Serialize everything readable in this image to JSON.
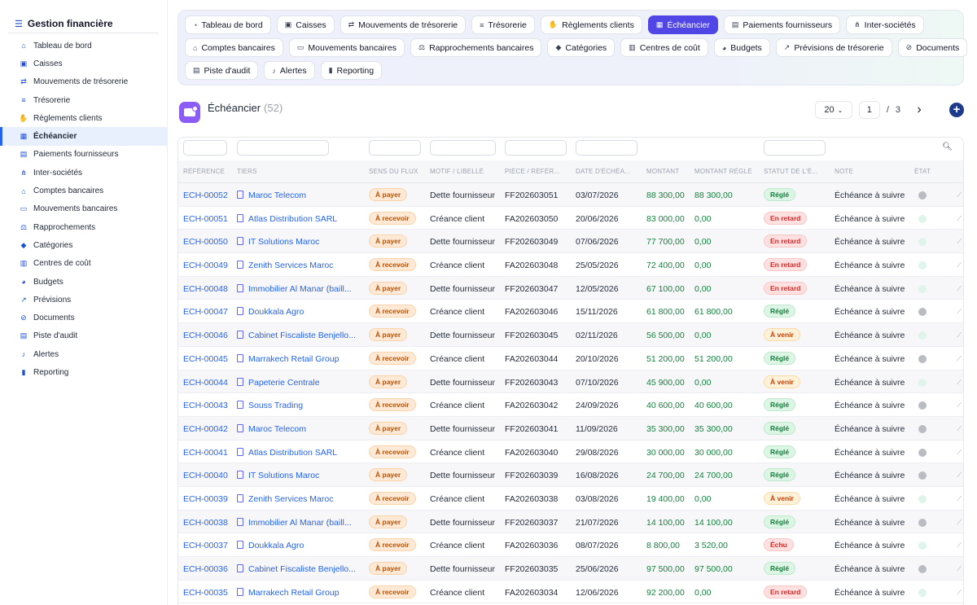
{
  "app": {
    "title": "Gestion financière"
  },
  "sidebar": {
    "items": [
      {
        "label": "Tableau de bord",
        "icon": "dashboard-icon",
        "glyph": "⌂"
      },
      {
        "label": "Caisses",
        "icon": "cash-register-icon",
        "glyph": "▣"
      },
      {
        "label": "Mouvements de trésorerie",
        "icon": "arrows-exchange-icon",
        "glyph": "⇄"
      },
      {
        "label": "Trésorerie",
        "icon": "list-icon",
        "glyph": "≡"
      },
      {
        "label": "Règlements clients",
        "icon": "hand-money-icon",
        "glyph": "✋"
      },
      {
        "label": "Échéancier",
        "icon": "calendar-icon",
        "glyph": "▦"
      },
      {
        "label": "Paiements fournisseurs",
        "icon": "document-icon",
        "glyph": "▤"
      },
      {
        "label": "Inter-sociétés",
        "icon": "sitemap-icon",
        "glyph": "⋔"
      },
      {
        "label": "Comptes bancaires",
        "icon": "bank-icon",
        "glyph": "⌂"
      },
      {
        "label": "Mouvements bancaires",
        "icon": "money-bill-icon",
        "glyph": "▭"
      },
      {
        "label": "Rapprochements",
        "icon": "scale-icon",
        "glyph": "⚖"
      },
      {
        "label": "Catégories",
        "icon": "tags-icon",
        "glyph": "◆"
      },
      {
        "label": "Centres de coût",
        "icon": "receipt-icon",
        "glyph": "▥"
      },
      {
        "label": "Budgets",
        "icon": "pie-chart-icon",
        "glyph": "◕"
      },
      {
        "label": "Prévisions",
        "icon": "line-chart-icon",
        "glyph": "↗"
      },
      {
        "label": "Documents",
        "icon": "paperclip-icon",
        "glyph": "⊘"
      },
      {
        "label": "Piste d'audit",
        "icon": "clipboard-icon",
        "glyph": "▤"
      },
      {
        "label": "Alertes",
        "icon": "bell-icon",
        "glyph": "♪"
      },
      {
        "label": "Reporting",
        "icon": "bar-chart-icon",
        "glyph": "▮"
      }
    ],
    "active_index": 5
  },
  "topnav": {
    "rows": [
      [
        {
          "label": "Tableau de bord",
          "icon": "dashboard-icon",
          "glyph": "◔"
        },
        {
          "label": "Caisses",
          "icon": "cash-register-icon",
          "glyph": "▣"
        },
        {
          "label": "Mouvements de trésorerie",
          "icon": "arrows-exchange-icon",
          "glyph": "⇄"
        },
        {
          "label": "Trésorerie",
          "icon": "list-icon",
          "glyph": "≡"
        },
        {
          "label": "Règlements clients",
          "icon": "hand-money-icon",
          "glyph": "✋"
        },
        {
          "label": "Échéancier",
          "icon": "calendar-icon",
          "glyph": "▦",
          "active": true
        },
        {
          "label": "Paiements fournisseurs",
          "icon": "document-icon",
          "glyph": "▤"
        },
        {
          "label": "Inter-sociétés",
          "icon": "sitemap-icon",
          "glyph": "⋔"
        }
      ],
      [
        {
          "label": "Comptes bancaires",
          "icon": "bank-icon",
          "glyph": "⌂"
        },
        {
          "label": "Mouvements bancaires",
          "icon": "money-bill-icon",
          "glyph": "▭"
        },
        {
          "label": "Rapprochements bancaires",
          "icon": "scale-icon",
          "glyph": "⚖"
        },
        {
          "label": "Catégories",
          "icon": "tags-icon",
          "glyph": "◆"
        },
        {
          "label": "Centres de coût",
          "icon": "receipt-icon",
          "glyph": "▥"
        },
        {
          "label": "Budgets",
          "icon": "pie-chart-icon",
          "glyph": "◕"
        },
        {
          "label": "Prévisions de trésorerie",
          "icon": "line-chart-icon",
          "glyph": "↗"
        },
        {
          "label": "Documents",
          "icon": "paperclip-icon",
          "glyph": "⊘"
        }
      ],
      [
        {
          "label": "Piste d'audit",
          "icon": "clipboard-icon",
          "glyph": "▤"
        },
        {
          "label": "Alertes",
          "icon": "bell-icon",
          "glyph": "♪"
        },
        {
          "label": "Reporting",
          "icon": "bar-chart-icon",
          "glyph": "▮"
        }
      ]
    ]
  },
  "page": {
    "title": "Échéancier",
    "count": "(52)",
    "page_size": "20",
    "page_current": "1",
    "page_sep": "/",
    "page_total": "3",
    "next_glyph": "›",
    "add_glyph": "+"
  },
  "table": {
    "columns": [
      "RÉFÉRENCE",
      "TIERS",
      "SENS DU FLUX",
      "MOTIF / LIBELLÉ",
      "PIÈCE / RÉFÉR...",
      "DATE D'ÉCHÉA...",
      "MONTANT",
      "MONTANT RÉGLÉ",
      "STATUT DE L'É...",
      "NOTE",
      "ÉTAT"
    ],
    "rows": [
      {
        "ref": "ECH-00052",
        "tiers": "Maroc Telecom",
        "sens": "À payer",
        "motif": "Dette fournisseur",
        "piece": "FF202603051",
        "date": "03/07/2026",
        "montant": "88 300,00",
        "regle": "88 300,00",
        "statut": "Réglé",
        "note": "Échéance à suivre",
        "etat": "grey"
      },
      {
        "ref": "ECH-00051",
        "tiers": "Atlas Distribution SARL",
        "sens": "À recevoir",
        "motif": "Créance client",
        "piece": "FA202603050",
        "date": "20/06/2026",
        "montant": "83 000,00",
        "regle": "0,00",
        "statut": "En retard",
        "note": "Échéance à suivre",
        "etat": "mint"
      },
      {
        "ref": "ECH-00050",
        "tiers": "IT Solutions Maroc",
        "sens": "À payer",
        "motif": "Dette fournisseur",
        "piece": "FF202603049",
        "date": "07/06/2026",
        "montant": "77 700,00",
        "regle": "0,00",
        "statut": "En retard",
        "note": "Échéance à suivre",
        "etat": "mint"
      },
      {
        "ref": "ECH-00049",
        "tiers": "Zenith Services Maroc",
        "sens": "À recevoir",
        "motif": "Créance client",
        "piece": "FA202603048",
        "date": "25/05/2026",
        "montant": "72 400,00",
        "regle": "0,00",
        "statut": "En retard",
        "note": "Échéance à suivre",
        "etat": "mint"
      },
      {
        "ref": "ECH-00048",
        "tiers": "Immobilier Al Manar (baill...",
        "sens": "À payer",
        "motif": "Dette fournisseur",
        "piece": "FF202603047",
        "date": "12/05/2026",
        "montant": "67 100,00",
        "regle": "0,00",
        "statut": "En retard",
        "note": "Échéance à suivre",
        "etat": "mint"
      },
      {
        "ref": "ECH-00047",
        "tiers": "Doukkala Agro",
        "sens": "À recevoir",
        "motif": "Créance client",
        "piece": "FA202603046",
        "date": "15/11/2026",
        "montant": "61 800,00",
        "regle": "61 800,00",
        "statut": "Réglé",
        "note": "Échéance à suivre",
        "etat": "grey"
      },
      {
        "ref": "ECH-00046",
        "tiers": "Cabinet Fiscaliste Benjello...",
        "sens": "À payer",
        "motif": "Dette fournisseur",
        "piece": "FF202603045",
        "date": "02/11/2026",
        "montant": "56 500,00",
        "regle": "0,00",
        "statut": "À venir",
        "note": "Échéance à suivre",
        "etat": "mint"
      },
      {
        "ref": "ECH-00045",
        "tiers": "Marrakech Retail Group",
        "sens": "À recevoir",
        "motif": "Créance client",
        "piece": "FA202603044",
        "date": "20/10/2026",
        "montant": "51 200,00",
        "regle": "51 200,00",
        "statut": "Réglé",
        "note": "Échéance à suivre",
        "etat": "grey"
      },
      {
        "ref": "ECH-00044",
        "tiers": "Papeterie Centrale",
        "sens": "À payer",
        "motif": "Dette fournisseur",
        "piece": "FF202603043",
        "date": "07/10/2026",
        "montant": "45 900,00",
        "regle": "0,00",
        "statut": "À venir",
        "note": "Échéance à suivre",
        "etat": "mint"
      },
      {
        "ref": "ECH-00043",
        "tiers": "Souss Trading",
        "sens": "À recevoir",
        "motif": "Créance client",
        "piece": "FA202603042",
        "date": "24/09/2026",
        "montant": "40 600,00",
        "regle": "40 600,00",
        "statut": "Réglé",
        "note": "Échéance à suivre",
        "etat": "grey"
      },
      {
        "ref": "ECH-00042",
        "tiers": "Maroc Telecom",
        "sens": "À payer",
        "motif": "Dette fournisseur",
        "piece": "FF202603041",
        "date": "11/09/2026",
        "montant": "35 300,00",
        "regle": "35 300,00",
        "statut": "Réglé",
        "note": "Échéance à suivre",
        "etat": "grey"
      },
      {
        "ref": "ECH-00041",
        "tiers": "Atlas Distribution SARL",
        "sens": "À recevoir",
        "motif": "Créance client",
        "piece": "FA202603040",
        "date": "29/08/2026",
        "montant": "30 000,00",
        "regle": "30 000,00",
        "statut": "Réglé",
        "note": "Échéance à suivre",
        "etat": "grey"
      },
      {
        "ref": "ECH-00040",
        "tiers": "IT Solutions Maroc",
        "sens": "À payer",
        "motif": "Dette fournisseur",
        "piece": "FF202603039",
        "date": "16/08/2026",
        "montant": "24 700,00",
        "regle": "24 700,00",
        "statut": "Réglé",
        "note": "Échéance à suivre",
        "etat": "grey"
      },
      {
        "ref": "ECH-00039",
        "tiers": "Zenith Services Maroc",
        "sens": "À recevoir",
        "motif": "Créance client",
        "piece": "FA202603038",
        "date": "03/08/2026",
        "montant": "19 400,00",
        "regle": "0,00",
        "statut": "À venir",
        "note": "Échéance à suivre",
        "etat": "mint"
      },
      {
        "ref": "ECH-00038",
        "tiers": "Immobilier Al Manar (baill...",
        "sens": "À payer",
        "motif": "Dette fournisseur",
        "piece": "FF202603037",
        "date": "21/07/2026",
        "montant": "14 100,00",
        "regle": "14 100,00",
        "statut": "Réglé",
        "note": "Échéance à suivre",
        "etat": "grey"
      },
      {
        "ref": "ECH-00037",
        "tiers": "Doukkala Agro",
        "sens": "À recevoir",
        "motif": "Créance client",
        "piece": "FA202603036",
        "date": "08/07/2026",
        "montant": "8 800,00",
        "regle": "3 520,00",
        "statut": "Échu",
        "note": "Échéance à suivre",
        "etat": "mint"
      },
      {
        "ref": "ECH-00036",
        "tiers": "Cabinet Fiscaliste Benjello...",
        "sens": "À payer",
        "motif": "Dette fournisseur",
        "piece": "FF202603035",
        "date": "25/06/2026",
        "montant": "97 500,00",
        "regle": "97 500,00",
        "statut": "Réglé",
        "note": "Échéance à suivre",
        "etat": "grey"
      },
      {
        "ref": "ECH-00035",
        "tiers": "Marrakech Retail Group",
        "sens": "À recevoir",
        "motif": "Créance client",
        "piece": "FA202603034",
        "date": "12/06/2026",
        "montant": "92 200,00",
        "regle": "0,00",
        "statut": "En retard",
        "note": "Échéance à suivre",
        "etat": "mint"
      }
    ]
  }
}
